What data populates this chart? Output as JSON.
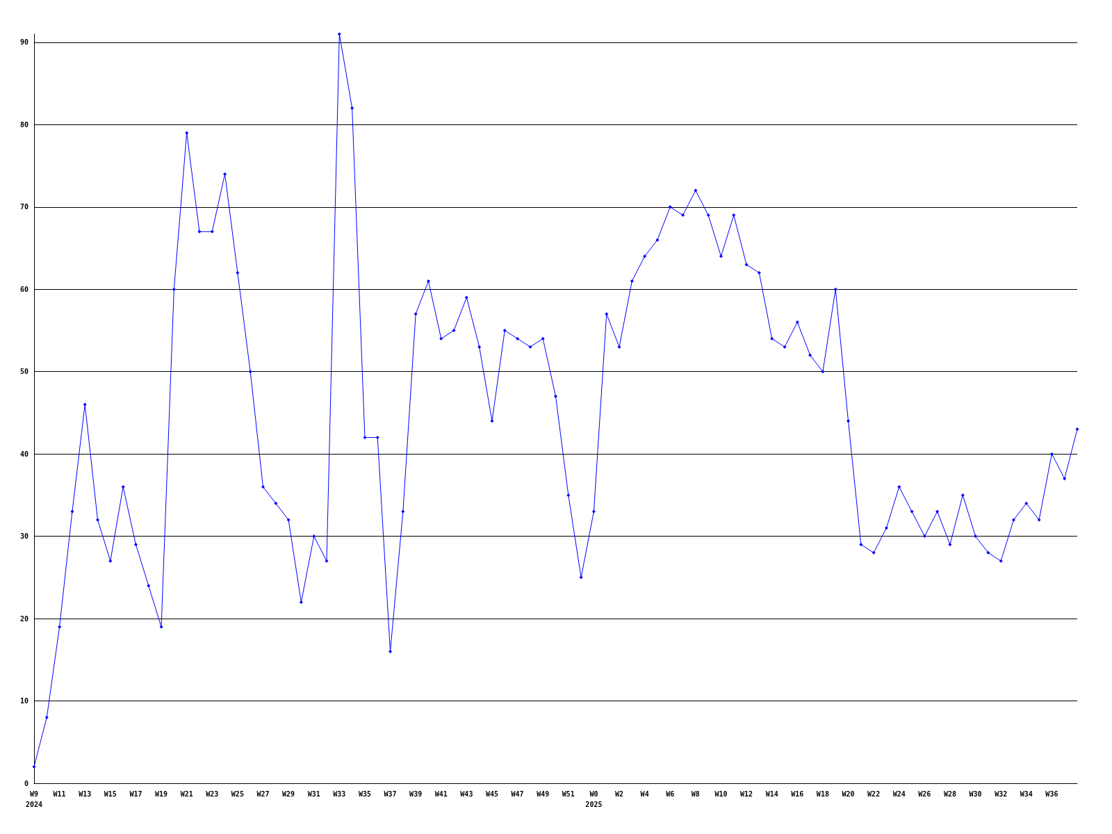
{
  "chart_data": {
    "type": "line",
    "categories": [
      "W9\n2024",
      null,
      "W11",
      null,
      "W13",
      null,
      "W15",
      null,
      "W17",
      null,
      "W19",
      null,
      "W21",
      null,
      "W23",
      null,
      "W25",
      null,
      "W27",
      null,
      "W29",
      null,
      "W31",
      null,
      "W33",
      null,
      "W35",
      null,
      "W37",
      null,
      "W39",
      null,
      "W41",
      null,
      "W43",
      null,
      "W45",
      null,
      "W47",
      null,
      "W49",
      null,
      "W51",
      null,
      "W0\n2025",
      null,
      "W2",
      null,
      "W4",
      null,
      "W6",
      null,
      "W8",
      null,
      "W10",
      null,
      "W12",
      null,
      "W14",
      null,
      "W16",
      null,
      "W18",
      null,
      "W20",
      null,
      "W22",
      null,
      "W24",
      null,
      "W26",
      null,
      "W28",
      null,
      "W30",
      null,
      "W32",
      null,
      "W34",
      null,
      "W36",
      null,
      null
    ],
    "series": [
      {
        "color": "#0000ff",
        "values": [
          2,
          8,
          19,
          33,
          46,
          32,
          27,
          36,
          29,
          24,
          19,
          60,
          79,
          67,
          67,
          74,
          62,
          50,
          36,
          34,
          32,
          22,
          30,
          27,
          91,
          82,
          42,
          42,
          16,
          33,
          57,
          61,
          54,
          55,
          59,
          53,
          44,
          55,
          54,
          53,
          54,
          47,
          35,
          25,
          33,
          57,
          53,
          61,
          64,
          66,
          70,
          69,
          72,
          69,
          64,
          69,
          63,
          62,
          54,
          53,
          56,
          52,
          50,
          60,
          44,
          29,
          28,
          31,
          36,
          33,
          30,
          33,
          29,
          35,
          30,
          28,
          27,
          32,
          34,
          32,
          40,
          37,
          43
        ]
      }
    ],
    "ylim": [
      0,
      91
    ],
    "yticks": [
      0,
      10,
      20,
      30,
      40,
      50,
      60,
      70,
      80,
      90
    ],
    "grid": "y",
    "marker": "diamond",
    "line_style": "solid"
  }
}
